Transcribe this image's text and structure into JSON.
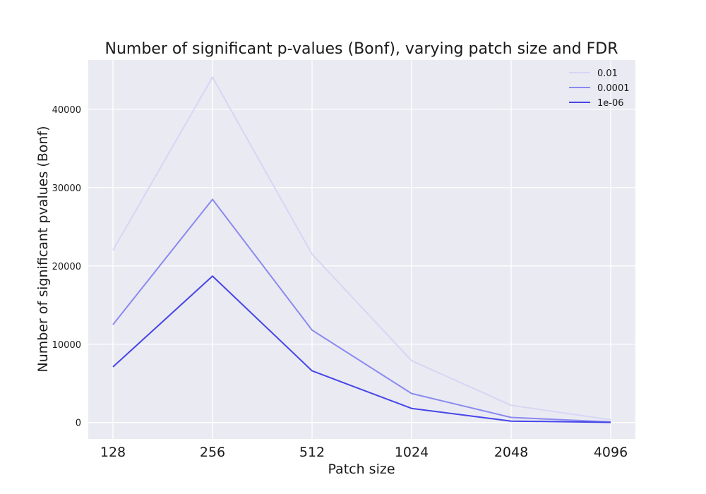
{
  "chart_data": {
    "type": "line",
    "title": "Number of significant p-values (Bonf), varying patch size and FDR",
    "xlabel": "Patch size",
    "ylabel": "Number of significant pvalues (Bonf)",
    "categories": [
      "128",
      "256",
      "512",
      "1024",
      "2048",
      "4096"
    ],
    "y_ticks": [
      0,
      10000,
      20000,
      30000,
      40000
    ],
    "ylim": [
      -2100,
      46300
    ],
    "grid": true,
    "legend_position": "top-right",
    "series": [
      {
        "name": "0.01",
        "color": "#d6d6f5",
        "values": [
          22000,
          44100,
          21500,
          7900,
          2200,
          350
        ]
      },
      {
        "name": "0.0001",
        "color": "#8a8af0",
        "values": [
          12500,
          28500,
          11800,
          3700,
          650,
          80
        ]
      },
      {
        "name": "1e-06",
        "color": "#4545e8",
        "values": [
          7100,
          18700,
          6600,
          1800,
          180,
          20
        ]
      }
    ]
  }
}
